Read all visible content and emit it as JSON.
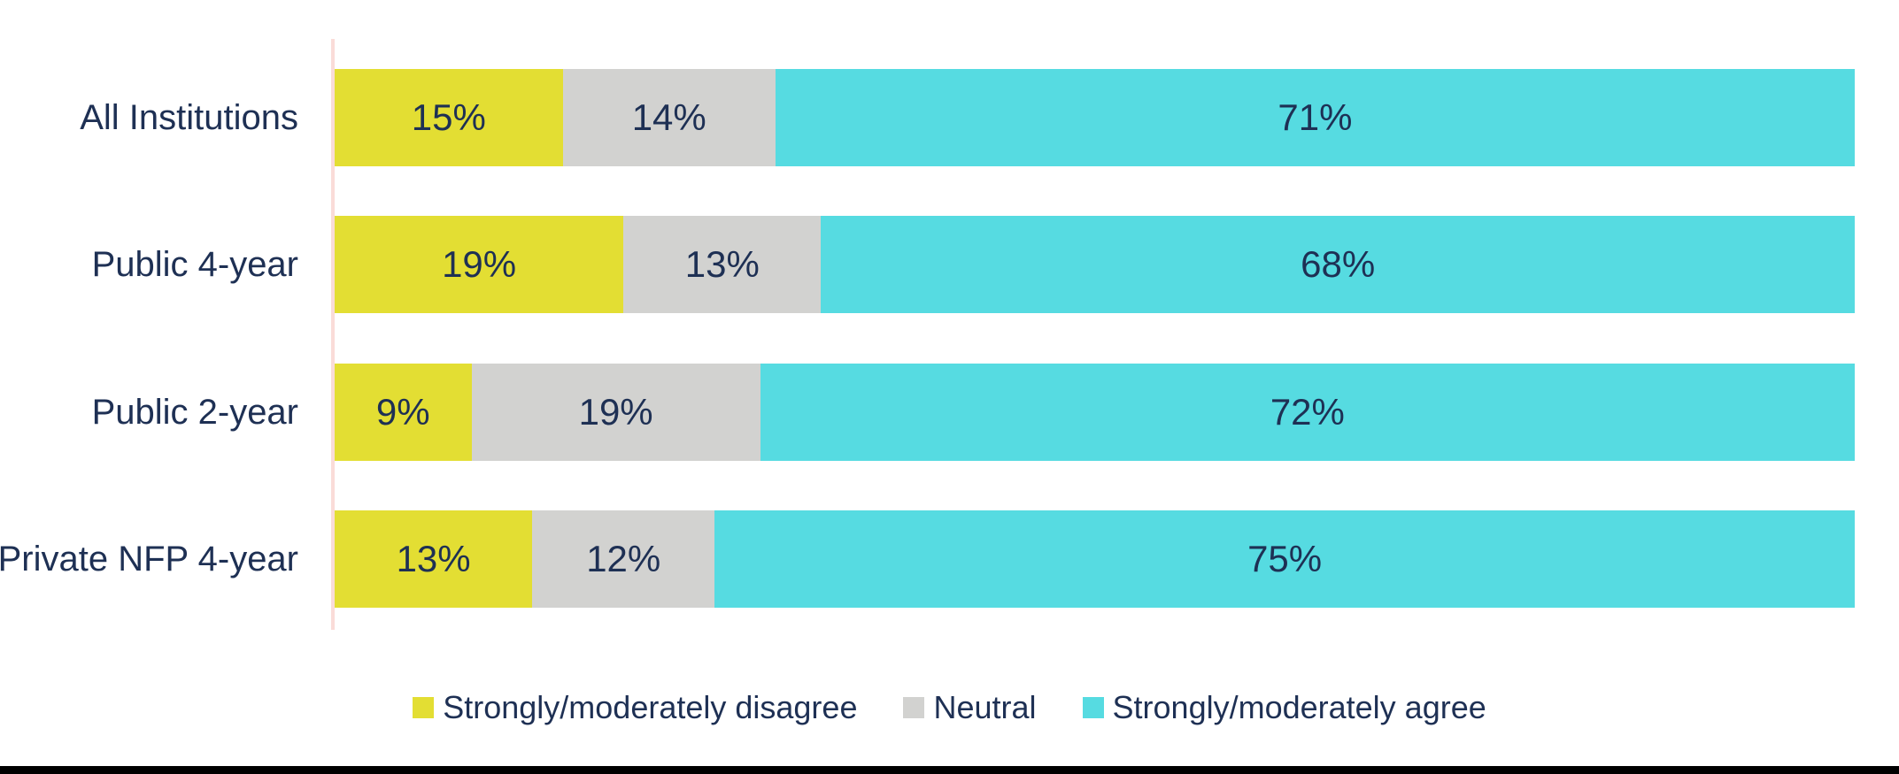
{
  "chart_data": {
    "type": "bar",
    "orientation": "horizontal_stacked",
    "title": "",
    "xlabel": "",
    "ylabel": "",
    "xlim": [
      0,
      100
    ],
    "value_suffix": "%",
    "data_labels": true,
    "grid": false,
    "legend_position": "bottom",
    "categories": [
      "All Institutions",
      "Public 4-year",
      "Public 2-year",
      "Private NFP 4-year"
    ],
    "series": [
      {
        "name": "Strongly/moderately disagree",
        "color": "#e3de33",
        "values": [
          15,
          19,
          9,
          13
        ]
      },
      {
        "name": "Neutral",
        "color": "#d2d2d0",
        "values": [
          14,
          13,
          19,
          12
        ]
      },
      {
        "name": "Strongly/moderately agree",
        "color": "#56dbe1",
        "values": [
          71,
          68,
          72,
          75
        ]
      }
    ]
  },
  "colors": {
    "label_text": "#1e3054",
    "axis_line": "#fadcd8",
    "background": "#ffffff",
    "footer_bar": "#000000"
  }
}
